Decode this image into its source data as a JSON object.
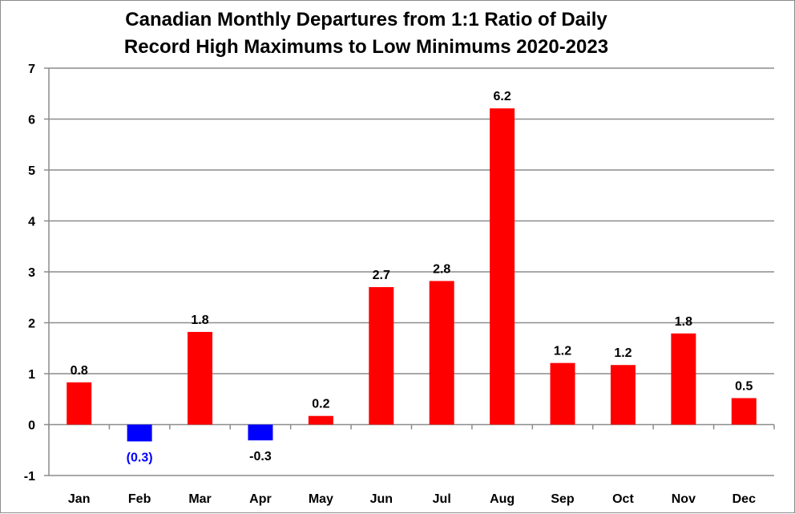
{
  "chart_data": {
    "type": "bar",
    "title_lines": [
      "Canadian Monthly Departures from 1:1 Ratio of Daily",
      "Record High Maximums to Low Minimums 2020-2023"
    ],
    "categories": [
      "Jan",
      "Feb",
      "Mar",
      "Apr",
      "May",
      "Jun",
      "Jul",
      "Aug",
      "Sep",
      "Oct",
      "Nov",
      "Dec"
    ],
    "values": [
      0.83,
      -0.33,
      1.82,
      -0.31,
      0.17,
      2.7,
      2.82,
      6.21,
      1.21,
      1.17,
      1.79,
      0.52
    ],
    "data_labels": [
      "0.8",
      "(0.3)",
      "1.8",
      "-0.3",
      "0.2",
      "2.7",
      "2.8",
      "6.2",
      "1.2",
      "1.2",
      "1.8",
      "0.5"
    ],
    "bar_colors": [
      "#ff0000",
      "#0000ff",
      "#ff0000",
      "#0000ff",
      "#ff0000",
      "#ff0000",
      "#ff0000",
      "#ff0000",
      "#ff0000",
      "#ff0000",
      "#ff0000",
      "#ff0000"
    ],
    "label_colors": [
      "#000000",
      "#0000ff",
      "#000000",
      "#000000",
      "#000000",
      "#000000",
      "#000000",
      "#000000",
      "#000000",
      "#000000",
      "#000000",
      "#000000"
    ],
    "ylim": [
      -1,
      7
    ],
    "yticks": [
      -1,
      0,
      1,
      2,
      3,
      4,
      5,
      6,
      7
    ],
    "grid": true,
    "legend": "none",
    "xlabel": "",
    "ylabel": ""
  }
}
